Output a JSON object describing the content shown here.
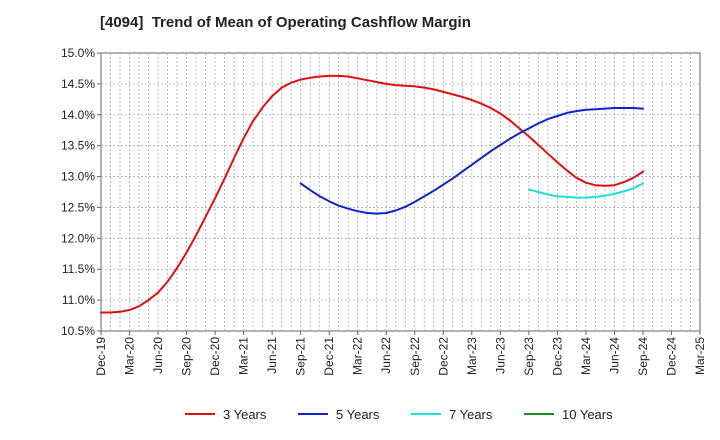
{
  "chart_data": {
    "type": "line",
    "title": "[4094]  Trend of Mean of Operating Cashflow Margin",
    "xlabel": "",
    "ylabel": "",
    "x_ticks": [
      "Dec-19",
      "Mar-20",
      "Jun-20",
      "Sep-20",
      "Dec-20",
      "Mar-21",
      "Jun-21",
      "Sep-21",
      "Dec-21",
      "Mar-22",
      "Jun-22",
      "Sep-22",
      "Dec-22",
      "Mar-23",
      "Jun-23",
      "Sep-23",
      "Dec-23",
      "Mar-24",
      "Jun-24",
      "Sep-24",
      "Dec-24",
      "Mar-25"
    ],
    "y_ticks": [
      "10.5%",
      "11.0%",
      "11.5%",
      "12.0%",
      "12.5%",
      "13.0%",
      "13.5%",
      "14.0%",
      "14.5%",
      "15.0%"
    ],
    "ylim": [
      10.5,
      15.0
    ],
    "grid": true,
    "legend_position": "bottom",
    "series": [
      {
        "name": "3 Years",
        "color": "#dd1111",
        "x": [
          "Dec-19",
          "Jan-20",
          "Feb-20",
          "Mar-20",
          "Apr-20",
          "May-20",
          "Jun-20",
          "Jul-20",
          "Aug-20",
          "Sep-20",
          "Oct-20",
          "Nov-20",
          "Dec-20",
          "Jan-21",
          "Feb-21",
          "Mar-21",
          "Apr-21",
          "May-21",
          "Jun-21",
          "Jul-21",
          "Aug-21",
          "Sep-21",
          "Oct-21",
          "Nov-21",
          "Dec-21",
          "Jan-22",
          "Feb-22",
          "Mar-22",
          "Apr-22",
          "May-22",
          "Jun-22",
          "Jul-22",
          "Aug-22",
          "Sep-22",
          "Oct-22",
          "Nov-22",
          "Dec-22",
          "Jan-23",
          "Feb-23",
          "Mar-23",
          "Apr-23",
          "May-23",
          "Jun-23",
          "Jul-23",
          "Aug-23",
          "Sep-23",
          "Oct-23",
          "Nov-23",
          "Dec-23",
          "Jan-24",
          "Feb-24",
          "Mar-24",
          "Apr-24",
          "May-24",
          "Jun-24",
          "Jul-24",
          "Aug-24",
          "Sep-24"
        ],
        "values": [
          10.8,
          10.8,
          10.81,
          10.84,
          10.9,
          11.0,
          11.12,
          11.3,
          11.52,
          11.77,
          12.05,
          12.35,
          12.65,
          12.97,
          13.3,
          13.62,
          13.9,
          14.12,
          14.3,
          14.44,
          14.52,
          14.57,
          14.6,
          14.62,
          14.63,
          14.63,
          14.62,
          14.59,
          14.56,
          14.53,
          14.5,
          14.48,
          14.47,
          14.46,
          14.44,
          14.41,
          14.37,
          14.33,
          14.29,
          14.24,
          14.18,
          14.11,
          14.02,
          13.91,
          13.78,
          13.65,
          13.51,
          13.37,
          13.23,
          13.1,
          12.98,
          12.9,
          12.86,
          12.85,
          12.86,
          12.91,
          12.98,
          13.08
        ]
      },
      {
        "name": "5 Years",
        "color": "#1122cc",
        "x": [
          "Sep-21",
          "Oct-21",
          "Nov-21",
          "Dec-21",
          "Jan-22",
          "Feb-22",
          "Mar-22",
          "Apr-22",
          "May-22",
          "Jun-22",
          "Jul-22",
          "Aug-22",
          "Sep-22",
          "Oct-22",
          "Nov-22",
          "Dec-22",
          "Jan-23",
          "Feb-23",
          "Mar-23",
          "Apr-23",
          "May-23",
          "Jun-23",
          "Jul-23",
          "Aug-23",
          "Sep-23",
          "Oct-23",
          "Nov-23",
          "Dec-23",
          "Jan-24",
          "Feb-24",
          "Mar-24",
          "Apr-24",
          "May-24",
          "Jun-24",
          "Jul-24",
          "Aug-24",
          "Sep-24"
        ],
        "values": [
          12.89,
          12.78,
          12.68,
          12.6,
          12.53,
          12.48,
          12.44,
          12.41,
          12.4,
          12.41,
          12.45,
          12.51,
          12.59,
          12.68,
          12.77,
          12.87,
          12.97,
          13.08,
          13.19,
          13.3,
          13.41,
          13.51,
          13.61,
          13.7,
          13.78,
          13.86,
          13.93,
          13.98,
          14.03,
          14.06,
          14.08,
          14.09,
          14.1,
          14.11,
          14.11,
          14.11,
          14.1
        ]
      },
      {
        "name": "7 Years",
        "color": "#22dddd",
        "x": [
          "Sep-23",
          "Oct-23",
          "Nov-23",
          "Dec-23",
          "Jan-24",
          "Feb-24",
          "Mar-24",
          "Apr-24",
          "May-24",
          "Jun-24",
          "Jul-24",
          "Aug-24",
          "Sep-24"
        ],
        "values": [
          12.79,
          12.75,
          12.71,
          12.68,
          12.67,
          12.66,
          12.66,
          12.67,
          12.69,
          12.72,
          12.76,
          12.81,
          12.89
        ]
      },
      {
        "name": "10 Years",
        "color": "#228822",
        "x": [],
        "values": []
      }
    ]
  }
}
